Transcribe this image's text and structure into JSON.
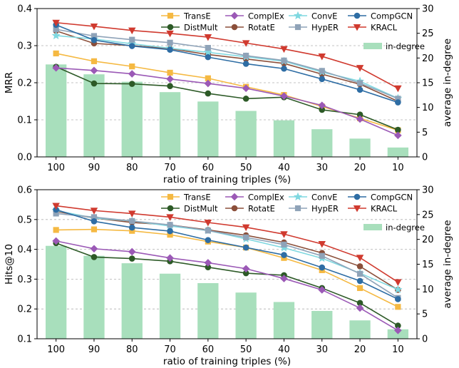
{
  "chart_data": [
    {
      "type": "line",
      "categories": [
        "100",
        "90",
        "80",
        "70",
        "60",
        "50",
        "40",
        "30",
        "20",
        "10"
      ],
      "xlabel": "ratio of training triples (%)",
      "ylabel": "MRR",
      "ylabel_right": "average in-degree",
      "ylim": [
        0,
        0.4
      ],
      "yticks": [
        "0.0",
        "0.1",
        "0.2",
        "0.3",
        "0.4"
      ],
      "ylim_right": [
        0,
        30
      ],
      "yticks_right": [
        "0",
        "5",
        "10",
        "15",
        "20",
        "25",
        "30"
      ],
      "grid": "horizontal dashed",
      "legend_position": "top-right",
      "bars": {
        "name": "in-degree",
        "color": "#a8dfbc",
        "values": [
          18.7,
          16.7,
          15.2,
          13.1,
          11.2,
          9.3,
          7.4,
          5.6,
          3.7,
          1.9
        ]
      },
      "series": [
        {
          "name": "TransE",
          "color": "#f5b942",
          "marker": "square",
          "values": [
            0.279,
            0.258,
            0.244,
            0.227,
            0.212,
            0.189,
            0.167,
            0.136,
            0.104,
            0.072
          ]
        },
        {
          "name": "DistMult",
          "color": "#2d5a27",
          "marker": "circle",
          "values": [
            0.243,
            0.198,
            0.197,
            0.191,
            0.171,
            0.157,
            0.161,
            0.127,
            0.114,
            0.073
          ]
        },
        {
          "name": "ComplEx",
          "color": "#9b59b6",
          "marker": "diamond",
          "values": [
            0.24,
            0.233,
            0.224,
            0.21,
            0.198,
            0.185,
            0.164,
            0.139,
            0.102,
            0.058
          ]
        },
        {
          "name": "RotatE",
          "color": "#8b4f3a",
          "marker": "circle",
          "values": [
            0.34,
            0.306,
            0.3,
            0.292,
            0.276,
            0.264,
            0.252,
            0.223,
            0.196,
            0.15
          ]
        },
        {
          "name": "ConvE",
          "color": "#7fd8e0",
          "marker": "star",
          "values": [
            0.327,
            0.318,
            0.305,
            0.293,
            0.282,
            0.27,
            0.258,
            0.229,
            0.204,
            0.158
          ]
        },
        {
          "name": "HypER",
          "color": "#8fa3b8",
          "marker": "square",
          "values": [
            0.344,
            0.326,
            0.316,
            0.308,
            0.294,
            0.273,
            0.26,
            0.232,
            0.199,
            0.157
          ]
        },
        {
          "name": "CompGCN",
          "color": "#2e6da4",
          "marker": "circle",
          "values": [
            0.356,
            0.315,
            0.299,
            0.289,
            0.269,
            0.251,
            0.238,
            0.21,
            0.181,
            0.147
          ]
        },
        {
          "name": "KRACL",
          "color": "#d03a2f",
          "marker": "triangle",
          "values": [
            0.362,
            0.352,
            0.341,
            0.333,
            0.323,
            0.307,
            0.291,
            0.271,
            0.24,
            0.185
          ]
        }
      ]
    },
    {
      "type": "line",
      "categories": [
        "100",
        "90",
        "80",
        "70",
        "60",
        "50",
        "40",
        "30",
        "20",
        "10"
      ],
      "xlabel": "ratio of training triples (%)",
      "ylabel": "Hits@10",
      "ylabel_right": "average in-degree",
      "ylim": [
        0.1,
        0.6
      ],
      "yticks": [
        "0.1",
        "0.2",
        "0.3",
        "0.4",
        "0.5",
        "0.6"
      ],
      "ylim_right": [
        0,
        30
      ],
      "yticks_right": [
        "0",
        "5",
        "10",
        "15",
        "20",
        "25",
        "30"
      ],
      "grid": "horizontal dashed",
      "legend_position": "top-right",
      "bars": {
        "name": "in-degree",
        "color": "#a8dfbc",
        "values": [
          18.7,
          16.7,
          15.2,
          13.1,
          11.2,
          9.3,
          7.4,
          5.6,
          3.7,
          1.9
        ]
      },
      "series": [
        {
          "name": "TransE",
          "color": "#f5b942",
          "marker": "square",
          "values": [
            0.465,
            0.467,
            0.462,
            0.449,
            0.426,
            0.406,
            0.371,
            0.33,
            0.27,
            0.207
          ]
        },
        {
          "name": "DistMult",
          "color": "#2d5a27",
          "marker": "circle",
          "values": [
            0.421,
            0.374,
            0.369,
            0.36,
            0.34,
            0.32,
            0.313,
            0.27,
            0.22,
            0.144
          ]
        },
        {
          "name": "ComplEx",
          "color": "#9b59b6",
          "marker": "diamond",
          "values": [
            0.428,
            0.402,
            0.392,
            0.371,
            0.355,
            0.335,
            0.302,
            0.264,
            0.203,
            0.128
          ]
        },
        {
          "name": "RotatE",
          "color": "#8b4f3a",
          "marker": "circle",
          "values": [
            0.527,
            0.505,
            0.49,
            0.482,
            0.465,
            0.447,
            0.423,
            0.388,
            0.343,
            0.264
          ]
        },
        {
          "name": "ConvE",
          "color": "#7fd8e0",
          "marker": "star",
          "values": [
            0.53,
            0.505,
            0.495,
            0.478,
            0.463,
            0.435,
            0.405,
            0.37,
            0.32,
            0.265
          ]
        },
        {
          "name": "HypER",
          "color": "#8fa3b8",
          "marker": "square",
          "values": [
            0.52,
            0.508,
            0.495,
            0.482,
            0.463,
            0.44,
            0.416,
            0.378,
            0.318,
            0.237
          ]
        },
        {
          "name": "CompGCN",
          "color": "#2e6da4",
          "marker": "circle",
          "values": [
            0.533,
            0.494,
            0.473,
            0.461,
            0.431,
            0.406,
            0.381,
            0.339,
            0.294,
            0.233
          ]
        },
        {
          "name": "KRACL",
          "color": "#d03a2f",
          "marker": "triangle",
          "values": [
            0.546,
            0.53,
            0.52,
            0.508,
            0.49,
            0.474,
            0.451,
            0.418,
            0.372,
            0.29
          ]
        }
      ]
    }
  ]
}
